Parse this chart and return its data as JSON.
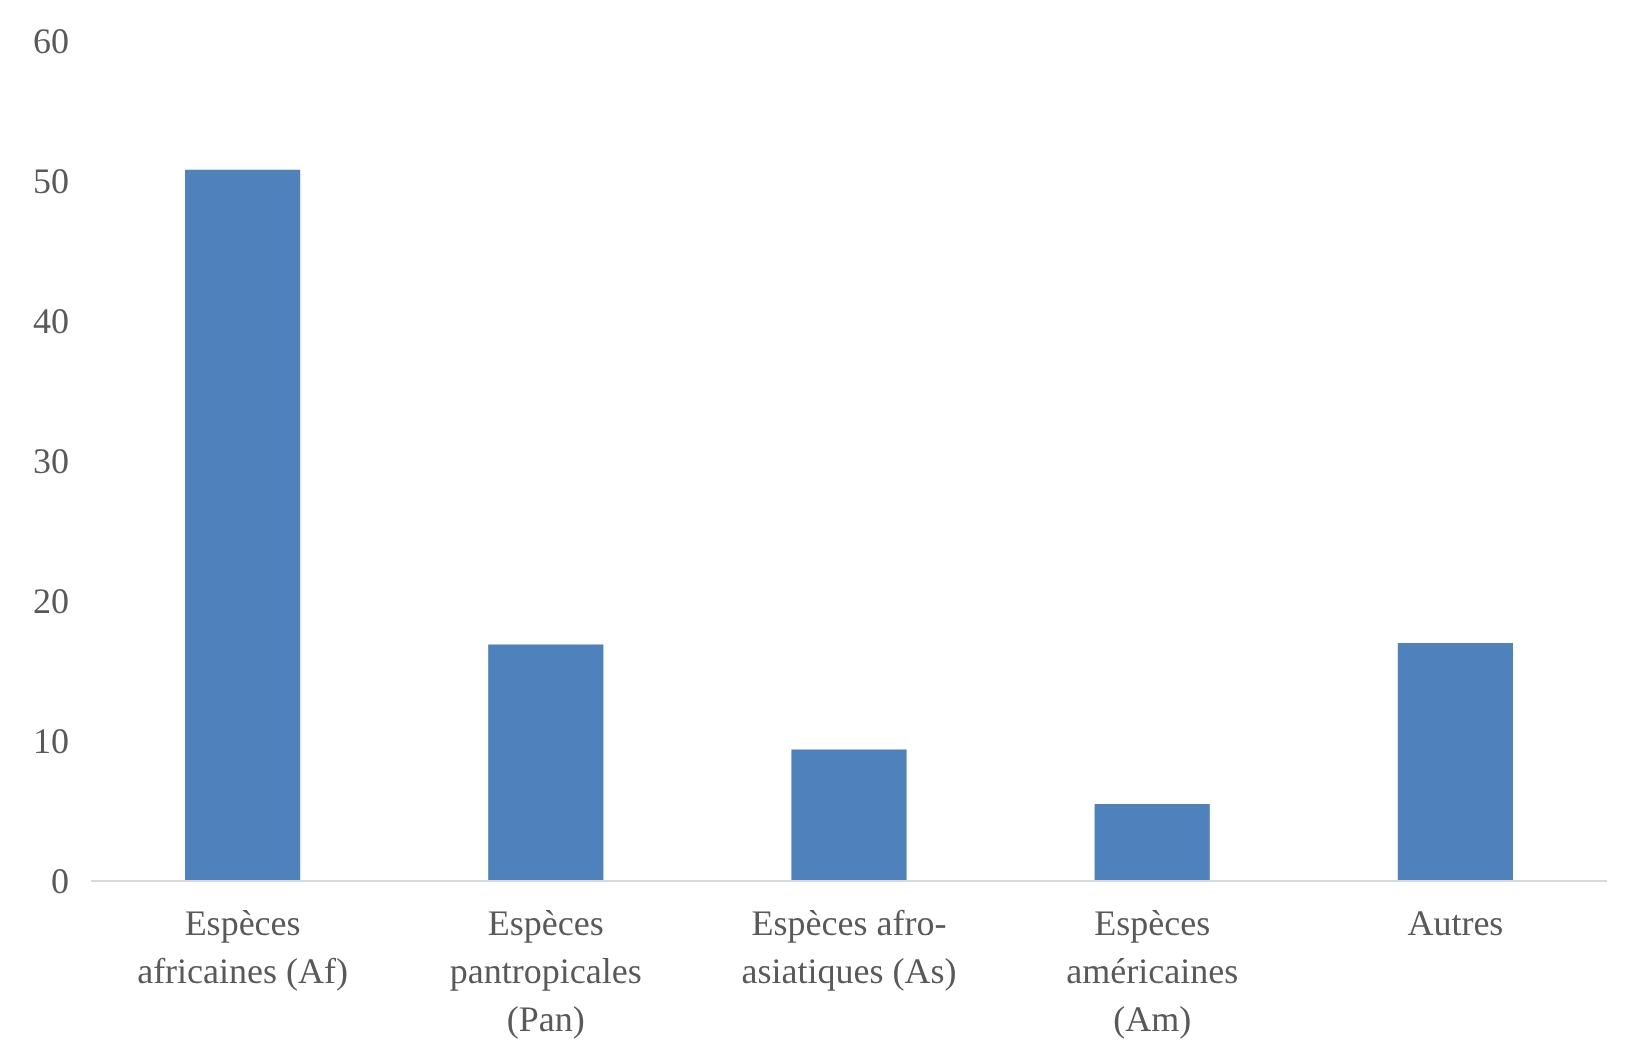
{
  "chart_data": {
    "type": "bar",
    "categories": [
      "Espèces africaines (Af)",
      "Espèces pantropicales (Pan)",
      "Espèces afro-asiatiques (As)",
      "Espèces américaines (Am)",
      "Autres"
    ],
    "values": [
      50.8,
      16.9,
      9.4,
      5.5,
      17.0
    ],
    "color": "#4f81bd",
    "ylim": [
      0,
      60
    ],
    "yticks": [
      0,
      10,
      20,
      30,
      40,
      50,
      60
    ],
    "grid": false
  }
}
